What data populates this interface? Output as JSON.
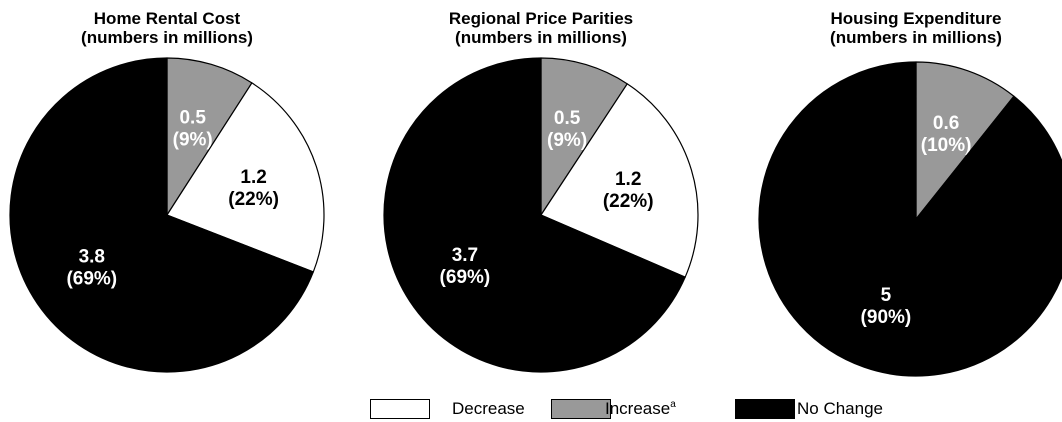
{
  "colors": {
    "decrease": "#ffffff",
    "increase": "#999999",
    "no_change": "#000000"
  },
  "legend": {
    "items": [
      {
        "key": "decrease",
        "label": "Decrease",
        "sup": ""
      },
      {
        "key": "increase",
        "label": "Increase",
        "sup": "a"
      },
      {
        "key": "no_change",
        "label": "No Change",
        "sup": ""
      }
    ]
  },
  "chart_data": [
    {
      "type": "pie",
      "title": "Home Rental Cost",
      "subtitle": "(numbers in millions)",
      "slices": [
        {
          "category": "Increase",
          "key": "increase",
          "value": 0.5,
          "value_label": "0.5",
          "percent_label": "(9%)"
        },
        {
          "category": "Decrease",
          "key": "decrease",
          "value": 1.2,
          "value_label": "1.2",
          "percent_label": "(22%)"
        },
        {
          "category": "No Change",
          "key": "no_change",
          "value": 3.8,
          "value_label": "3.8",
          "percent_label": "(69%)"
        }
      ]
    },
    {
      "type": "pie",
      "title": "Regional Price Parities",
      "subtitle": "(numbers in millions)",
      "slices": [
        {
          "category": "Increase",
          "key": "increase",
          "value": 0.5,
          "value_label": "0.5",
          "percent_label": "(9%)"
        },
        {
          "category": "Decrease",
          "key": "decrease",
          "value": 1.2,
          "value_label": "1.2",
          "percent_label": "(22%)"
        },
        {
          "category": "No Change",
          "key": "no_change",
          "value": 3.7,
          "value_label": "3.7",
          "percent_label": "(69%)"
        }
      ]
    },
    {
      "type": "pie",
      "title": "Housing Expenditure",
      "subtitle": "(numbers in millions)",
      "slices": [
        {
          "category": "Increase",
          "key": "increase",
          "value": 0.6,
          "value_label": "0.6",
          "percent_label": "(10%)"
        },
        {
          "category": "No Change",
          "key": "no_change",
          "value": 5,
          "value_label": "5",
          "percent_label": "(90%)"
        }
      ]
    }
  ]
}
